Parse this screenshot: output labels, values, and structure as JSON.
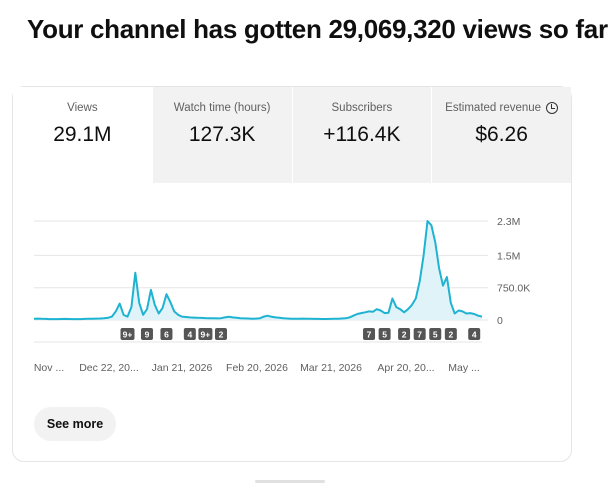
{
  "headline": "Your channel has gotten 29,069,320 views so far",
  "tabs": [
    {
      "label": "Views",
      "value": "29.1M",
      "active": true
    },
    {
      "label": "Watch time (hours)",
      "value": "127.3K",
      "active": false
    },
    {
      "label": "Subscribers",
      "value": "+116.4K",
      "active": false
    },
    {
      "label": "Estimated revenue",
      "value": "$6.26",
      "active": false,
      "icon": "clock-icon"
    }
  ],
  "chart_data": {
    "type": "area",
    "series": [
      {
        "values": [
          30000,
          32000,
          28000,
          25000,
          22000,
          20000,
          22000,
          24000,
          26000,
          24000,
          22000,
          20000,
          22000,
          25000,
          28000,
          30000,
          32000,
          35000,
          40000,
          50000,
          80000,
          200000,
          380000,
          120000,
          80000,
          300000,
          1100000,
          400000,
          120000,
          250000,
          700000,
          350000,
          150000,
          280000,
          600000,
          420000,
          200000,
          120000,
          80000,
          70000,
          60000,
          55000,
          50000,
          48000,
          45000,
          42000,
          40000,
          38000,
          42000,
          60000,
          75000,
          60000,
          50000,
          40000,
          38000,
          35000,
          30000,
          32000,
          40000,
          80000,
          100000,
          75000,
          60000,
          50000,
          40000,
          35000,
          30000,
          28000,
          30000,
          32000,
          30000,
          28000,
          26000,
          25000,
          24000,
          24000,
          26000,
          28000,
          30000,
          35000,
          40000,
          60000,
          100000,
          140000,
          160000,
          180000,
          200000,
          190000,
          250000,
          220000,
          160000,
          170000,
          500000,
          300000,
          250000,
          180000,
          250000,
          350000,
          500000,
          900000,
          1500000,
          2300000,
          2200000,
          1800000,
          1200000,
          800000,
          1000000,
          400000,
          150000,
          220000,
          200000,
          150000,
          160000,
          140000,
          100000,
          80000
        ]
      }
    ],
    "x_tick_labels": [
      "Nov ...",
      "Dec 22, 20...",
      "Jan 21, 2026",
      "Feb 20, 2026",
      "Mar 21, 2026",
      "Apr 20, 20...",
      "May ..."
    ],
    "y_tick_labels": [
      "0",
      "750.0K",
      "1.5M",
      "2.3M"
    ],
    "y_ticks": [
      0,
      750000,
      1500000,
      2300000
    ],
    "ylim": [
      0,
      2300000
    ],
    "line_color": "#1fb3d2",
    "fill_color": "#dff3f8",
    "grid": true,
    "markers": [
      {
        "label": "9+",
        "index": 24
      },
      {
        "label": "9",
        "index": 29
      },
      {
        "label": "6",
        "index": 34
      },
      {
        "label": "4",
        "index": 40
      },
      {
        "label": "9+",
        "index": 44
      },
      {
        "label": "2",
        "index": 48
      },
      {
        "label": "7",
        "index": 86
      },
      {
        "label": "5",
        "index": 90
      },
      {
        "label": "2",
        "index": 95
      },
      {
        "label": "7",
        "index": 99
      },
      {
        "label": "5",
        "index": 103
      },
      {
        "label": "2",
        "index": 107
      },
      {
        "label": "4",
        "index": 113
      }
    ]
  },
  "see_more_label": "See more"
}
